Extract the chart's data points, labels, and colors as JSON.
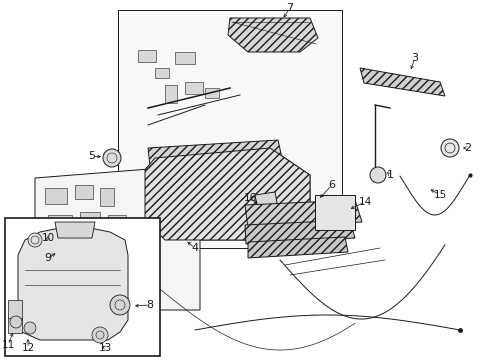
{
  "bg_color": "#ffffff",
  "line_color": "#1a1a1a",
  "fig_width": 4.89,
  "fig_height": 3.6,
  "dpi": 100,
  "hatch_color": "#555555",
  "gray_fill": "#e0e0e0",
  "light_fill": "#f0f0f0"
}
